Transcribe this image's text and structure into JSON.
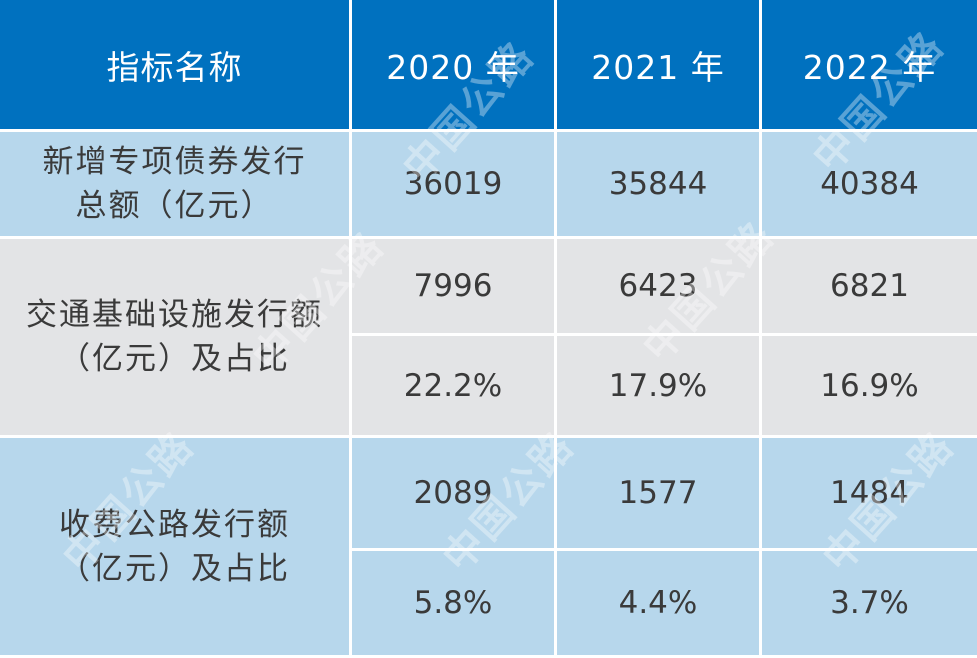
{
  "table": {
    "header": {
      "name_col": "指标名称",
      "years": [
        "2020 年",
        "2021 年",
        "2022 年"
      ]
    },
    "rows": [
      {
        "label_line1": "新增专项债券发行",
        "label_line2": "总额（亿元）",
        "values": [
          "36019",
          "35844",
          "40384"
        ]
      },
      {
        "label_line1": "交通基础设施发行额",
        "label_line2": "（亿元）及占比",
        "amounts": [
          "7996",
          "6423",
          "6821"
        ],
        "shares": [
          "22.2%",
          "17.9%",
          "16.9%"
        ]
      },
      {
        "label_line1": "收费公路发行额",
        "label_line2": "（亿元）及占比",
        "amounts": [
          "2089",
          "1577",
          "1484"
        ],
        "shares": [
          "5.8%",
          "4.4%",
          "3.7%"
        ]
      }
    ]
  },
  "watermark": {
    "text": "中国公路"
  },
  "colors": {
    "header_bg": "#0071bf",
    "row_blue": "#b7d7ec",
    "row_gray": "#e3e4e6"
  }
}
